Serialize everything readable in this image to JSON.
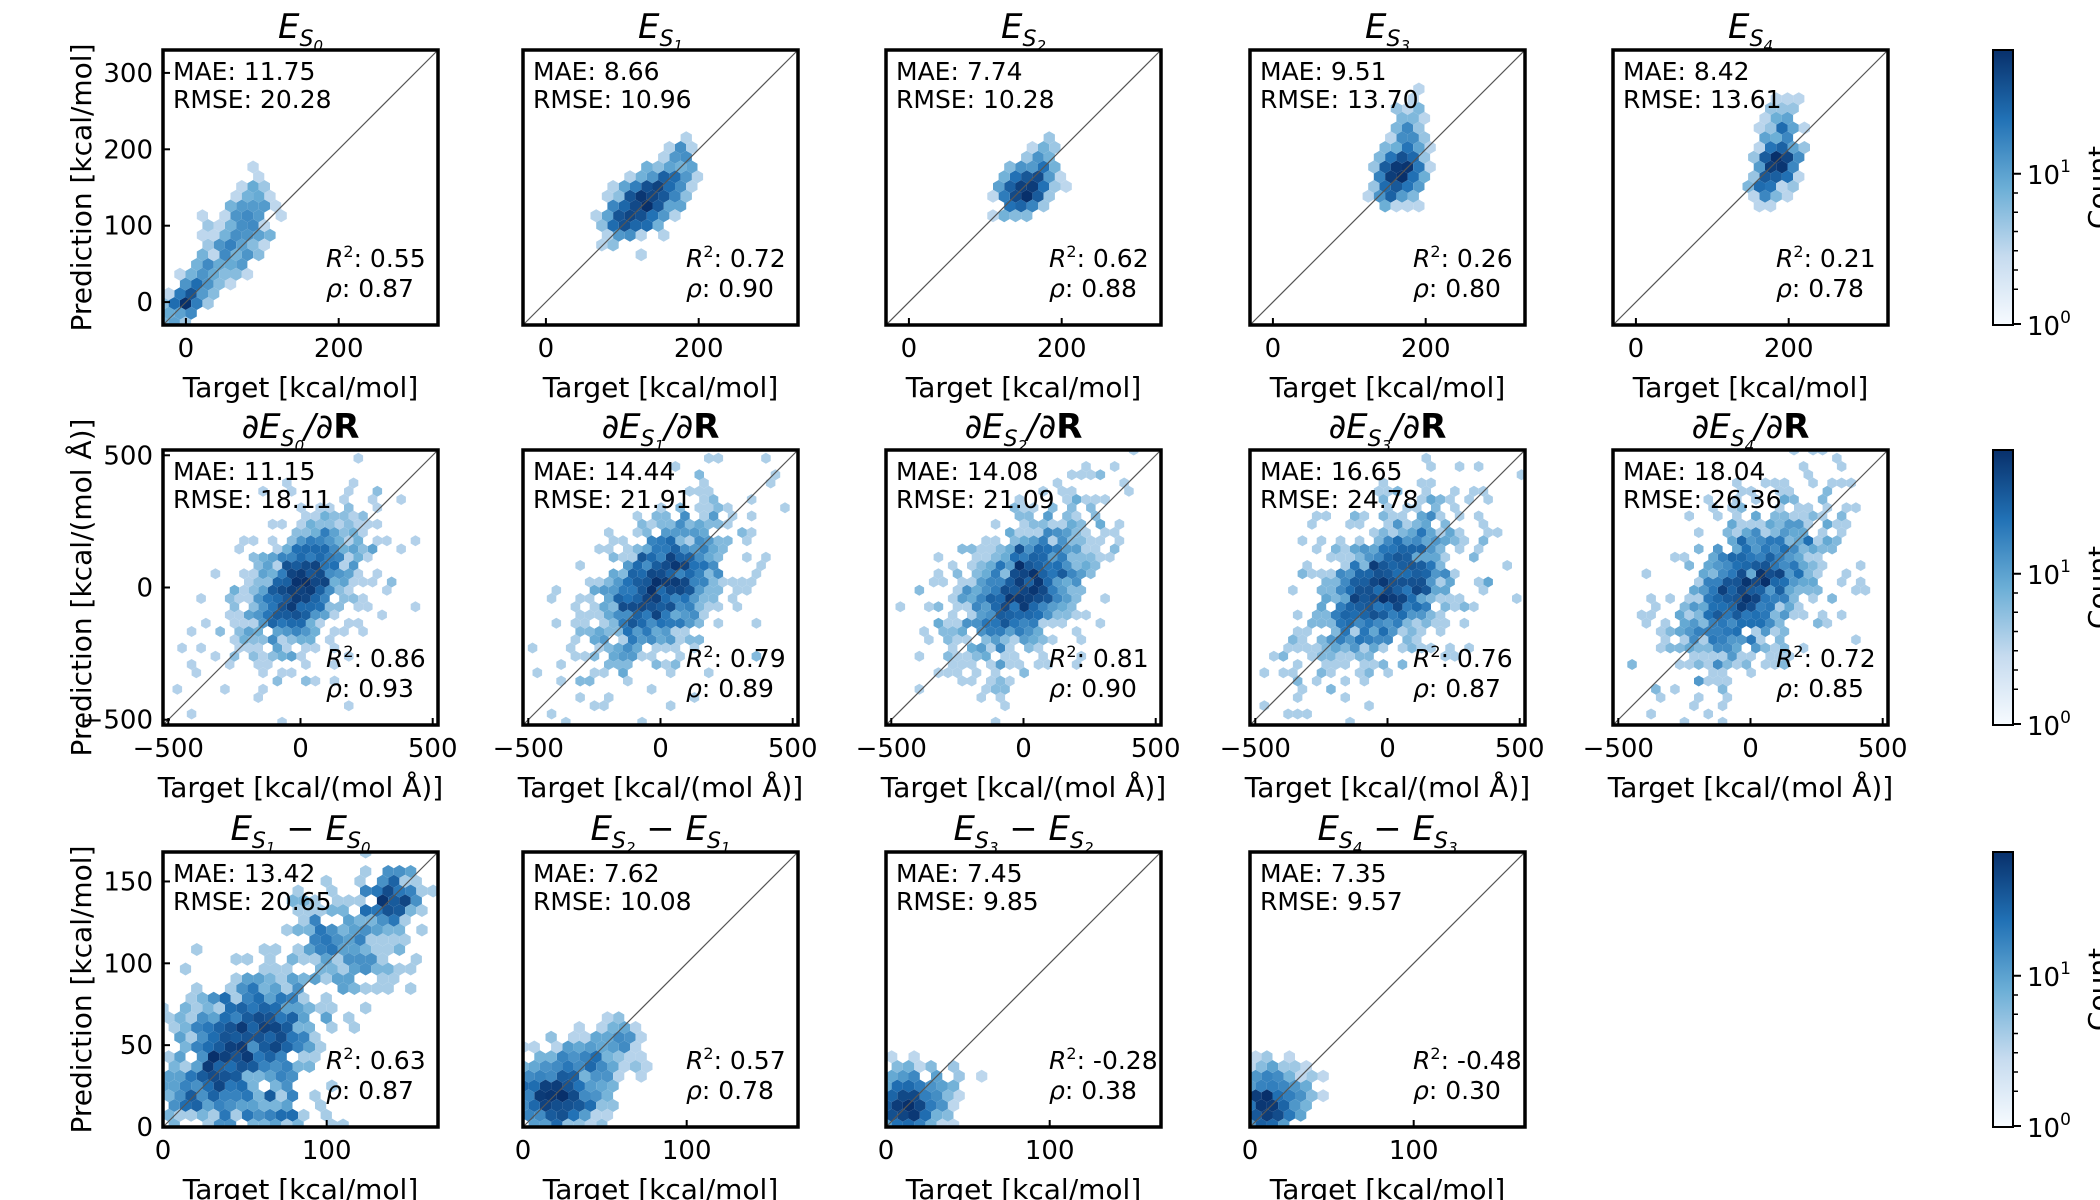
{
  "figure": {
    "colorbar_label": "Count",
    "colorbar_ticks": [
      "10",
      "10"
    ],
    "colorbar_exponents": [
      "1",
      "0"
    ],
    "colormap": [
      "#f7fbff",
      "#c6dbef",
      "#6baed6",
      "#2171b5",
      "#08306b"
    ]
  },
  "chart_data": [
    {
      "type": "heatmap",
      "panel": 0,
      "title": {
        "base": "E",
        "sub1": "S",
        "sub2": "0"
      },
      "xlabel": "Target [kcal/mol]",
      "ylabel": "Prediction [kcal/mol]",
      "xlim": [
        -30,
        330
      ],
      "ylim": [
        -30,
        330
      ],
      "xticks": [
        0,
        200
      ],
      "yticks": [
        0,
        100,
        200,
        300
      ],
      "metrics": {
        "mae": "MAE: 11.75",
        "rmse": "RMSE: 20.28",
        "r2": ": 0.55",
        "rho": ": 0.87"
      },
      "clusters": [
        [
          0,
          0,
          130,
          8,
          8
        ],
        [
          20,
          25,
          80,
          12,
          14
        ],
        [
          50,
          60,
          70,
          16,
          20
        ],
        [
          75,
          85,
          60,
          14,
          20
        ],
        [
          85,
          105,
          40,
          12,
          18
        ],
        [
          85,
          125,
          24,
          14,
          22
        ],
        [
          90,
          130,
          16,
          10,
          20
        ],
        [
          70,
          110,
          20,
          20,
          14
        ],
        [
          -18,
          -15,
          30,
          8,
          8
        ]
      ]
    },
    {
      "type": "heatmap",
      "panel": 1,
      "title": {
        "base": "E",
        "sub1": "S",
        "sub2": "1"
      },
      "xlabel": "Target [kcal/mol]",
      "ylabel": "",
      "xlim": [
        -30,
        330
      ],
      "ylim": [
        -30,
        330
      ],
      "xticks": [
        0,
        200
      ],
      "yticks": [],
      "metrics": {
        "mae": "MAE: 8.66",
        "rmse": "RMSE: 10.96",
        "r2": ": 0.72",
        "rho": ": 0.90"
      },
      "clusters": [
        [
          130,
          130,
          260,
          16,
          16
        ],
        [
          100,
          105,
          100,
          12,
          12
        ],
        [
          160,
          160,
          80,
          14,
          16
        ],
        [
          180,
          185,
          30,
          10,
          12
        ]
      ]
    },
    {
      "type": "heatmap",
      "panel": 2,
      "title": {
        "base": "E",
        "sub1": "S",
        "sub2": "2"
      },
      "xlabel": "Target [kcal/mol]",
      "ylabel": "",
      "xlim": [
        -30,
        330
      ],
      "ylim": [
        -30,
        330
      ],
      "xticks": [
        0,
        200
      ],
      "yticks": [],
      "metrics": {
        "mae": "MAE: 7.74",
        "rmse": "RMSE: 10.28",
        "r2": ": 0.62",
        "rho": ": 0.88"
      },
      "clusters": [
        [
          155,
          150,
          320,
          14,
          14
        ],
        [
          140,
          135,
          80,
          10,
          10
        ],
        [
          175,
          180,
          60,
          10,
          14
        ]
      ]
    },
    {
      "type": "heatmap",
      "panel": 3,
      "title": {
        "base": "E",
        "sub1": "S",
        "sub2": "3"
      },
      "xlabel": "Target [kcal/mol]",
      "ylabel": "",
      "xlim": [
        -30,
        330
      ],
      "ylim": [
        -30,
        330
      ],
      "xticks": [
        0,
        200
      ],
      "yticks": [],
      "metrics": {
        "mae": "MAE: 9.51",
        "rmse": "RMSE: 13.70",
        "r2": ": 0.26",
        "rho": ": 0.80"
      },
      "clusters": [
        [
          165,
          170,
          300,
          13,
          16
        ],
        [
          175,
          200,
          80,
          12,
          22
        ],
        [
          185,
          230,
          25,
          10,
          18
        ],
        [
          150,
          145,
          40,
          8,
          10
        ]
      ]
    },
    {
      "type": "heatmap",
      "panel": 4,
      "title": {
        "base": "E",
        "sub1": "S",
        "sub2": "4"
      },
      "xlabel": "Target [kcal/mol]",
      "ylabel": "",
      "xlim": [
        -30,
        330
      ],
      "ylim": [
        -30,
        330
      ],
      "xticks": [
        0,
        200
      ],
      "yticks": [],
      "metrics": {
        "mae": "MAE: 8.42",
        "rmse": "RMSE: 13.61",
        "r2": ": 0.21",
        "rho": ": 0.78"
      },
      "clusters": [
        [
          185,
          180,
          260,
          12,
          14
        ],
        [
          190,
          210,
          70,
          12,
          20
        ],
        [
          200,
          235,
          25,
          12,
          18
        ],
        [
          165,
          150,
          40,
          8,
          10
        ]
      ]
    },
    {
      "type": "heatmap",
      "panel": 5,
      "title": {
        "bold": true,
        "base": "E",
        "sub1": "S",
        "sub2": "0"
      },
      "xlabel": "Target [kcal/(mol Å)]",
      "ylabel": "Prediction [kcal/(mol Å)]",
      "xlim": [
        -520,
        520
      ],
      "ylim": [
        -520,
        520
      ],
      "xticks": [
        -500,
        0,
        500
      ],
      "yticks": [
        -500,
        0,
        500
      ],
      "metrics": {
        "mae": "MAE: 11.15",
        "rmse": "RMSE: 18.11",
        "r2": ": 0.86",
        "rho": ": 0.93"
      },
      "clusters": [
        [
          0,
          0,
          900,
          85,
          85
        ],
        [
          0,
          0,
          300,
          170,
          150
        ]
      ]
    },
    {
      "type": "heatmap",
      "panel": 6,
      "title": {
        "bold": true,
        "base": "E",
        "sub1": "S",
        "sub2": "1"
      },
      "xlabel": "Target [kcal/(mol Å)]",
      "ylabel": "",
      "xlim": [
        -520,
        520
      ],
      "ylim": [
        -520,
        520
      ],
      "xticks": [
        -500,
        0,
        500
      ],
      "yticks": [],
      "metrics": {
        "mae": "MAE: 14.44",
        "rmse": "RMSE: 21.91",
        "r2": ": 0.79",
        "rho": ": 0.89"
      },
      "clusters": [
        [
          0,
          0,
          900,
          100,
          100
        ],
        [
          0,
          0,
          300,
          190,
          170
        ]
      ]
    },
    {
      "type": "heatmap",
      "panel": 7,
      "title": {
        "bold": true,
        "base": "E",
        "sub1": "S",
        "sub2": "2"
      },
      "xlabel": "Target [kcal/(mol Å)]",
      "ylabel": "",
      "xlim": [
        -520,
        520
      ],
      "ylim": [
        -520,
        520
      ],
      "xticks": [
        -500,
        0,
        500
      ],
      "yticks": [],
      "metrics": {
        "mae": "MAE: 14.08",
        "rmse": "RMSE: 21.09",
        "r2": ": 0.81",
        "rho": ": 0.90"
      },
      "clusters": [
        [
          0,
          0,
          900,
          100,
          100
        ],
        [
          0,
          0,
          300,
          190,
          170
        ]
      ]
    },
    {
      "type": "heatmap",
      "panel": 8,
      "title": {
        "bold": true,
        "base": "E",
        "sub1": "S",
        "sub2": "3"
      },
      "xlabel": "Target [kcal/(mol Å)]",
      "ylabel": "",
      "xlim": [
        -520,
        520
      ],
      "ylim": [
        -520,
        520
      ],
      "xticks": [
        -500,
        0,
        500
      ],
      "yticks": [],
      "metrics": {
        "mae": "MAE: 16.65",
        "rmse": "RMSE: 24.78",
        "r2": ": 0.76",
        "rho": ": 0.87"
      },
      "clusters": [
        [
          0,
          0,
          900,
          110,
          105
        ],
        [
          0,
          0,
          300,
          200,
          180
        ]
      ]
    },
    {
      "type": "heatmap",
      "panel": 9,
      "title": {
        "bold": true,
        "base": "E",
        "sub1": "S",
        "sub2": "4"
      },
      "xlabel": "Target [kcal/(mol Å)]",
      "ylabel": "",
      "xlim": [
        -520,
        520
      ],
      "ylim": [
        -520,
        520
      ],
      "xticks": [
        -500,
        0,
        500
      ],
      "yticks": [],
      "metrics": {
        "mae": "MAE: 18.04",
        "rmse": "RMSE: 26.36",
        "r2": ": 0.72",
        "rho": ": 0.85"
      },
      "clusters": [
        [
          0,
          0,
          900,
          115,
          110
        ],
        [
          0,
          0,
          300,
          210,
          190
        ]
      ]
    },
    {
      "type": "heatmap",
      "panel": 10,
      "title": {
        "diff": true,
        "a": "1",
        "b": "0"
      },
      "xlabel": "Target [kcal/mol]",
      "ylabel": "Prediction [kcal/mol]",
      "xlim": [
        0,
        168
      ],
      "ylim": [
        0,
        168
      ],
      "xticks": [
        0,
        100
      ],
      "yticks": [
        0,
        50,
        100,
        150
      ],
      "metrics": {
        "mae": "MAE: 13.42",
        "rmse": "RMSE: 20.65",
        "r2": ": 0.63",
        "rho": ": 0.87"
      },
      "clusters": [
        [
          60,
          58,
          500,
          18,
          16
        ],
        [
          110,
          110,
          200,
          18,
          18
        ],
        [
          140,
          140,
          140,
          8,
          8
        ],
        [
          20,
          20,
          150,
          14,
          12
        ],
        [
          40,
          40,
          150,
          12,
          12
        ],
        [
          70,
          8,
          70,
          16,
          8
        ],
        [
          45,
          15,
          40,
          14,
          8
        ],
        [
          30,
          60,
          50,
          12,
          10
        ]
      ]
    },
    {
      "type": "heatmap",
      "panel": 11,
      "title": {
        "diff": true,
        "a": "2",
        "b": "1"
      },
      "xlabel": "Target [kcal/mol]",
      "ylabel": "",
      "xlim": [
        0,
        168
      ],
      "ylim": [
        0,
        168
      ],
      "xticks": [
        0,
        100
      ],
      "yticks": [],
      "metrics": {
        "mae": "MAE: 7.62",
        "rmse": "RMSE: 10.08",
        "r2": ": 0.57",
        "rho": ": 0.78"
      },
      "clusters": [
        [
          20,
          20,
          500,
          12,
          10
        ],
        [
          40,
          38,
          150,
          12,
          10
        ],
        [
          60,
          55,
          40,
          8,
          6
        ],
        [
          25,
          10,
          60,
          10,
          5
        ]
      ]
    },
    {
      "type": "heatmap",
      "panel": 12,
      "title": {
        "diff": true,
        "a": "3",
        "b": "2"
      },
      "xlabel": "Target [kcal/mol]",
      "ylabel": "",
      "xlim": [
        0,
        168
      ],
      "ylim": [
        0,
        168
      ],
      "xticks": [
        0,
        100
      ],
      "yticks": [],
      "metrics": {
        "mae": "MAE: 7.45",
        "rmse": "RMSE: 9.85",
        "r2": ": -0.28",
        "rho": ": 0.38"
      },
      "clusters": [
        [
          12,
          12,
          500,
          9,
          7
        ],
        [
          25,
          20,
          100,
          12,
          9
        ],
        [
          10,
          25,
          40,
          6,
          7
        ]
      ]
    },
    {
      "type": "heatmap",
      "panel": 13,
      "title": {
        "diff": true,
        "a": "4",
        "b": "3"
      },
      "xlabel": "Target [kcal/mol]",
      "ylabel": "",
      "xlim": [
        0,
        168
      ],
      "ylim": [
        0,
        168
      ],
      "xticks": [
        0,
        100
      ],
      "yticks": [],
      "metrics": {
        "mae": "MAE: 7.35",
        "rmse": "RMSE: 9.57",
        "r2": ": -0.48",
        "rho": ": 0.30"
      },
      "clusters": [
        [
          10,
          12,
          500,
          7,
          8
        ],
        [
          25,
          20,
          100,
          10,
          9
        ],
        [
          8,
          30,
          40,
          5,
          7
        ]
      ]
    }
  ]
}
